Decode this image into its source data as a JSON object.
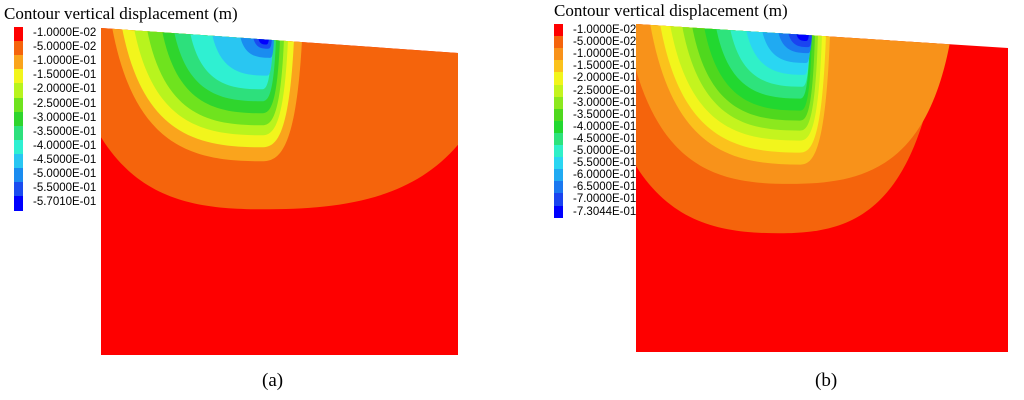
{
  "panels": [
    {
      "title": "Contour vertical displacement (m)",
      "caption": "(a)",
      "legend": {
        "labels": [
          "-1.0000E-02",
          "-5.0000E-02",
          "-1.0000E-01",
          "-1.5000E-01",
          "-2.0000E-01",
          "-2.5000E-01",
          "-3.0000E-01",
          "-3.5000E-01",
          "-4.0000E-01",
          "-4.5000E-01",
          "-5.0000E-01",
          "-5.5000E-01",
          "-5.7010E-01"
        ],
        "colors": [
          "#fe0000",
          "#f5640c",
          "#faa41c",
          "#f2f51c",
          "#b8f41e",
          "#6fe31e",
          "#2fd52d",
          "#2de07c",
          "#2ff0d2",
          "#29c6f2",
          "#1a8cf0",
          "#1a4cf0",
          "#0000fe"
        ]
      }
    },
    {
      "title": "Contour vertical displacement (m)",
      "caption": "(b)",
      "legend": {
        "labels": [
          "-1.0000E-02",
          "-5.0000E-02",
          "-1.0000E-01",
          "-1.5000E-01",
          "-2.0000E-01",
          "-2.5000E-01",
          "-3.0000E-01",
          "-3.5000E-01",
          "-4.0000E-01",
          "-4.5000E-01",
          "-5.0000E-01",
          "-5.5000E-01",
          "-6.0000E-01",
          "-6.5000E-01",
          "-7.0000E-01",
          "-7.3044E-01"
        ],
        "colors": [
          "#fe0000",
          "#f5640c",
          "#f8921a",
          "#fbc21c",
          "#f2f51c",
          "#c4f41e",
          "#8ce81e",
          "#4fd81e",
          "#22d830",
          "#2ee37c",
          "#30f0c8",
          "#2ad6f2",
          "#20aaf2",
          "#1a78f0",
          "#1a44f0",
          "#0000fe"
        ]
      }
    }
  ]
}
